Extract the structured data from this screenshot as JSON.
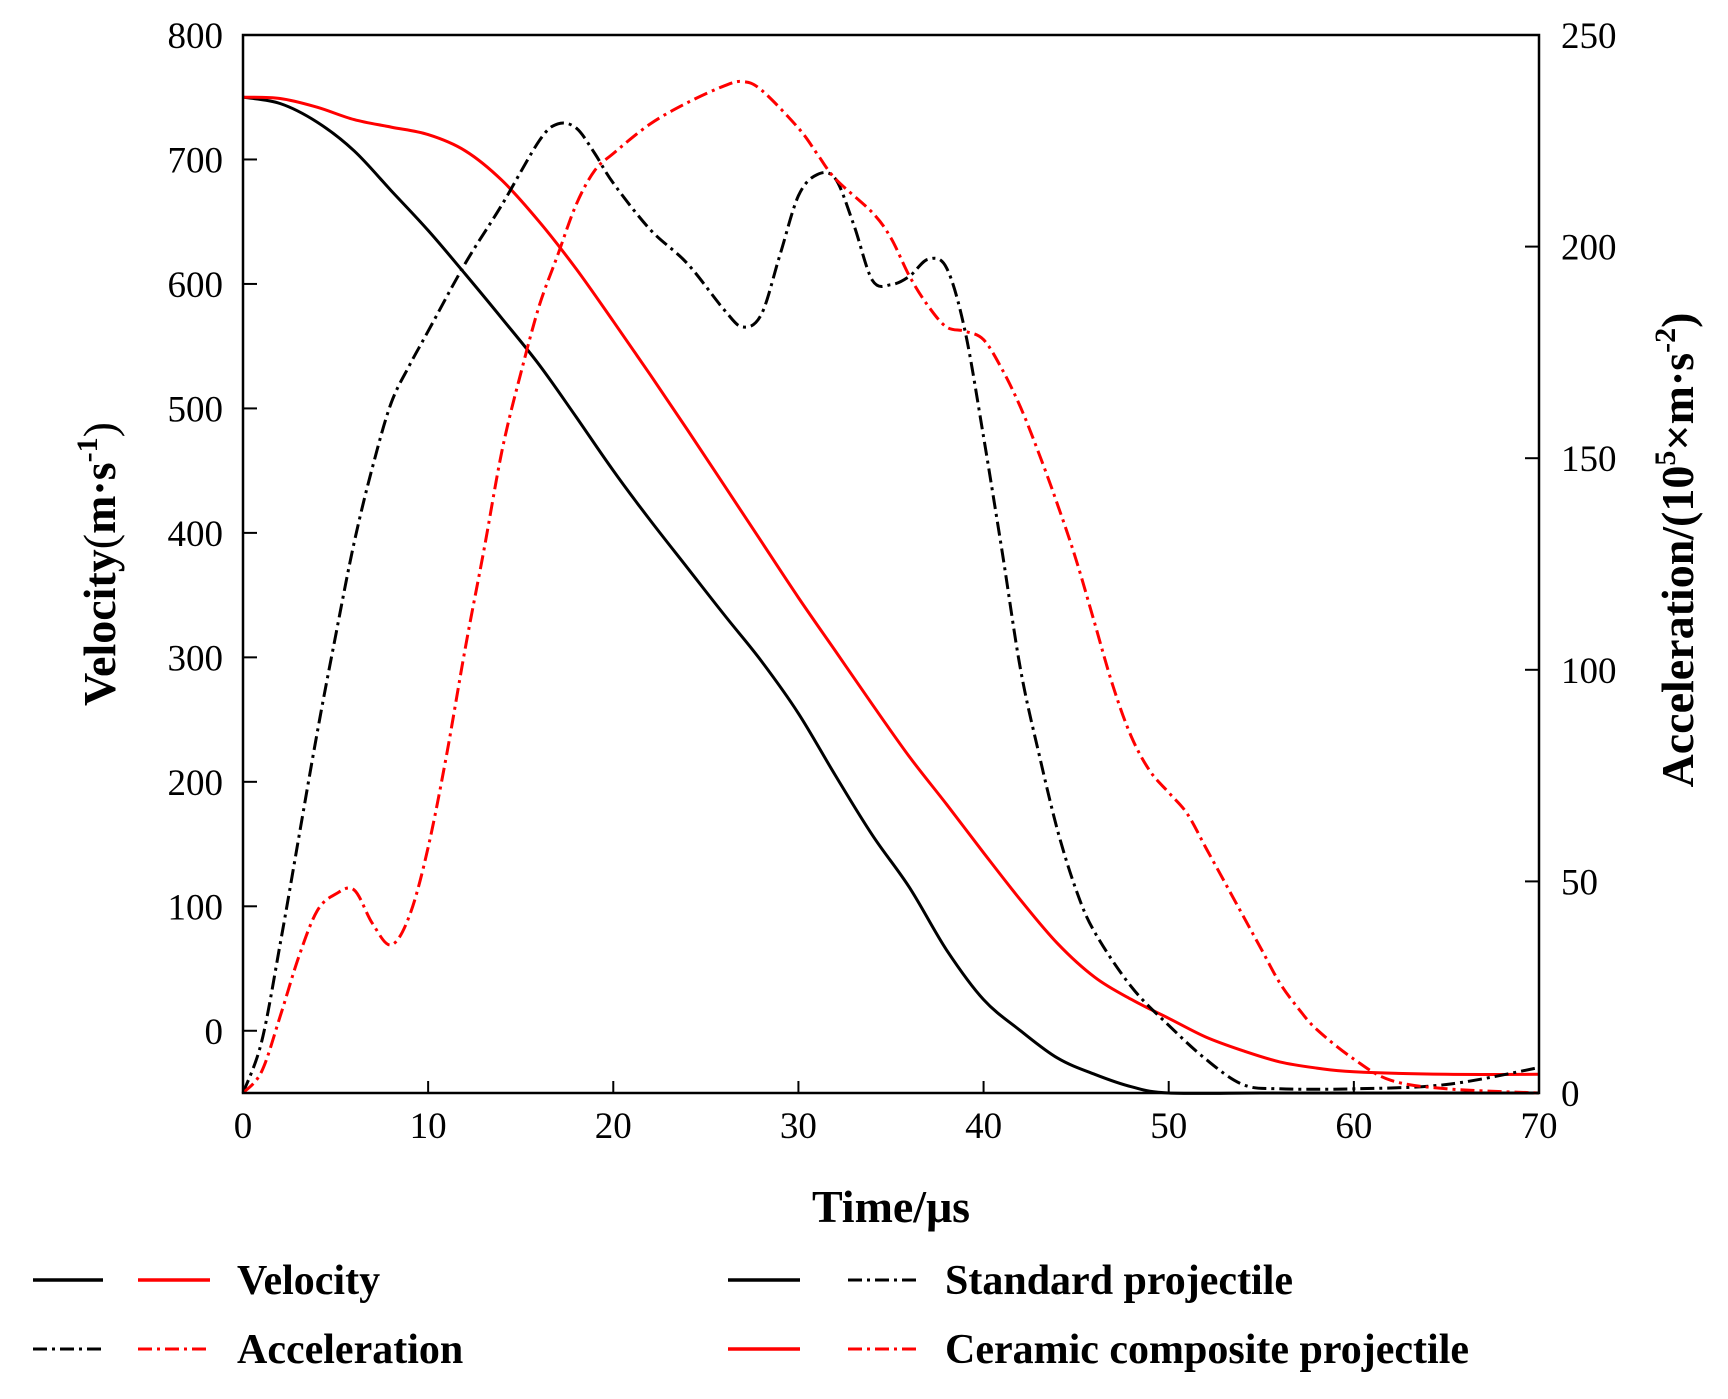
{
  "chart_data": {
    "type": "line",
    "title": "",
    "xlabel": "Time/μs",
    "ylabel_left": {
      "prefix": "Velocity",
      "paren_open": "(",
      "main": "m·s",
      "sup": "-1",
      "paren_close": ")"
    },
    "ylabel_right": {
      "prefix": "Acceleration/(10",
      "sup1": "5",
      "mid": "×m·s",
      "sup2": "-2",
      "suffix": ")"
    },
    "xlim": [
      0,
      70
    ],
    "ylim_left": [
      -50,
      800
    ],
    "ylim_right": [
      0,
      250
    ],
    "x_ticks": [
      "0",
      "10",
      "20",
      "30",
      "40",
      "50",
      "60",
      "70"
    ],
    "y_left_ticks": [
      "800",
      "700",
      "600",
      "500",
      "400",
      "300",
      "200",
      "100",
      "0"
    ],
    "y_left_tick_values": [
      800,
      700,
      600,
      500,
      400,
      300,
      200,
      100,
      0
    ],
    "y_right_ticks": [
      "250",
      "200",
      "150",
      "100",
      "50",
      "0"
    ],
    "y_right_tick_values": [
      250,
      200,
      150,
      100,
      50,
      0
    ],
    "colors": {
      "standard": "#000000",
      "ceramic": "#ff0000"
    },
    "series": [
      {
        "name": "Standard projectile velocity",
        "axis": "left",
        "color": "#000000",
        "style": "solid",
        "points": [
          [
            0,
            750
          ],
          [
            2,
            745
          ],
          [
            4,
            730
          ],
          [
            6,
            707
          ],
          [
            8,
            675
          ],
          [
            10,
            643
          ],
          [
            12,
            608
          ],
          [
            14,
            572
          ],
          [
            16,
            535
          ],
          [
            18,
            493
          ],
          [
            20,
            450
          ],
          [
            22,
            410
          ],
          [
            24,
            372
          ],
          [
            26,
            334
          ],
          [
            28,
            297
          ],
          [
            30,
            255
          ],
          [
            32,
            205
          ],
          [
            34,
            157
          ],
          [
            36,
            115
          ],
          [
            38,
            65
          ],
          [
            40,
            25
          ],
          [
            42,
            0
          ],
          [
            44,
            -22
          ],
          [
            46,
            -35
          ],
          [
            48,
            -45
          ],
          [
            50,
            -50
          ],
          [
            55,
            -50
          ],
          [
            60,
            -50
          ],
          [
            70,
            -50
          ]
        ]
      },
      {
        "name": "Ceramic composite projectile velocity",
        "axis": "left",
        "color": "#ff0000",
        "style": "solid",
        "points": [
          [
            0,
            750
          ],
          [
            2,
            749
          ],
          [
            4,
            742
          ],
          [
            6,
            732
          ],
          [
            8,
            726
          ],
          [
            10,
            720
          ],
          [
            12,
            707
          ],
          [
            14,
            683
          ],
          [
            16,
            650
          ],
          [
            18,
            612
          ],
          [
            20,
            570
          ],
          [
            22,
            527
          ],
          [
            24,
            483
          ],
          [
            26,
            438
          ],
          [
            28,
            393
          ],
          [
            30,
            348
          ],
          [
            32,
            305
          ],
          [
            34,
            262
          ],
          [
            36,
            220
          ],
          [
            38,
            182
          ],
          [
            40,
            143
          ],
          [
            42,
            105
          ],
          [
            44,
            70
          ],
          [
            46,
            43
          ],
          [
            48,
            25
          ],
          [
            50,
            10
          ],
          [
            52,
            -5
          ],
          [
            54,
            -16
          ],
          [
            56,
            -25
          ],
          [
            58,
            -30
          ],
          [
            60,
            -33
          ],
          [
            65,
            -35
          ],
          [
            70,
            -35
          ]
        ]
      },
      {
        "name": "Standard projectile acceleration",
        "axis": "right",
        "color": "#000000",
        "style": "dashdot",
        "points": [
          [
            0,
            0
          ],
          [
            1,
            12
          ],
          [
            2,
            35
          ],
          [
            3,
            60
          ],
          [
            4,
            85
          ],
          [
            5,
            108
          ],
          [
            6,
            130
          ],
          [
            7,
            148
          ],
          [
            8,
            163
          ],
          [
            9,
            172
          ],
          [
            10,
            180
          ],
          [
            12,
            196
          ],
          [
            14,
            210
          ],
          [
            16,
            225
          ],
          [
            17,
            229
          ],
          [
            18,
            228
          ],
          [
            19,
            222
          ],
          [
            20,
            215
          ],
          [
            22,
            204
          ],
          [
            24,
            196
          ],
          [
            26,
            185
          ],
          [
            27,
            181
          ],
          [
            28,
            184
          ],
          [
            29,
            198
          ],
          [
            30,
            212
          ],
          [
            31,
            217
          ],
          [
            32,
            216
          ],
          [
            33,
            205
          ],
          [
            34,
            192
          ],
          [
            35,
            191
          ],
          [
            36,
            193
          ],
          [
            37,
            197
          ],
          [
            38,
            195
          ],
          [
            39,
            180
          ],
          [
            40,
            155
          ],
          [
            41,
            128
          ],
          [
            42,
            100
          ],
          [
            43,
            80
          ],
          [
            44,
            62
          ],
          [
            45,
            48
          ],
          [
            46,
            38
          ],
          [
            48,
            25
          ],
          [
            50,
            16
          ],
          [
            52,
            8
          ],
          [
            54,
            2
          ],
          [
            56,
            1
          ],
          [
            60,
            1
          ],
          [
            65,
            2
          ],
          [
            70,
            6
          ]
        ]
      },
      {
        "name": "Ceramic composite projectile acceleration",
        "axis": "right",
        "color": "#ff0000",
        "style": "dashdot",
        "points": [
          [
            0,
            0
          ],
          [
            1,
            5
          ],
          [
            2,
            18
          ],
          [
            3,
            32
          ],
          [
            4,
            43
          ],
          [
            5,
            47
          ],
          [
            6,
            48
          ],
          [
            7,
            40
          ],
          [
            8,
            35
          ],
          [
            9,
            42
          ],
          [
            10,
            58
          ],
          [
            11,
            80
          ],
          [
            12,
            105
          ],
          [
            13,
            128
          ],
          [
            14,
            152
          ],
          [
            15,
            170
          ],
          [
            16,
            186
          ],
          [
            17,
            198
          ],
          [
            18,
            210
          ],
          [
            19,
            218
          ],
          [
            20,
            222
          ],
          [
            22,
            229
          ],
          [
            24,
            234
          ],
          [
            26,
            238
          ],
          [
            27,
            239
          ],
          [
            28,
            237
          ],
          [
            30,
            228
          ],
          [
            31,
            222
          ],
          [
            32,
            216
          ],
          [
            34,
            208
          ],
          [
            35,
            202
          ],
          [
            36,
            193
          ],
          [
            37,
            186
          ],
          [
            38,
            181
          ],
          [
            39,
            180
          ],
          [
            40,
            178
          ],
          [
            41,
            171
          ],
          [
            42,
            162
          ],
          [
            43,
            151
          ],
          [
            44,
            139
          ],
          [
            45,
            126
          ],
          [
            46,
            111
          ],
          [
            47,
            96
          ],
          [
            48,
            84
          ],
          [
            49,
            76
          ],
          [
            50,
            71
          ],
          [
            51,
            66
          ],
          [
            52,
            58
          ],
          [
            53,
            50
          ],
          [
            54,
            42
          ],
          [
            55,
            34
          ],
          [
            56,
            26
          ],
          [
            57,
            20
          ],
          [
            58,
            15
          ],
          [
            60,
            8
          ],
          [
            62,
            3
          ],
          [
            65,
            1
          ],
          [
            70,
            0
          ]
        ]
      }
    ],
    "legend": {
      "position": "bottom",
      "rows": [
        {
          "label": "Velocity",
          "group_label": "Standard projectile"
        },
        {
          "label": "Acceleration",
          "group_label": "Ceramic composite projectile"
        }
      ]
    }
  }
}
